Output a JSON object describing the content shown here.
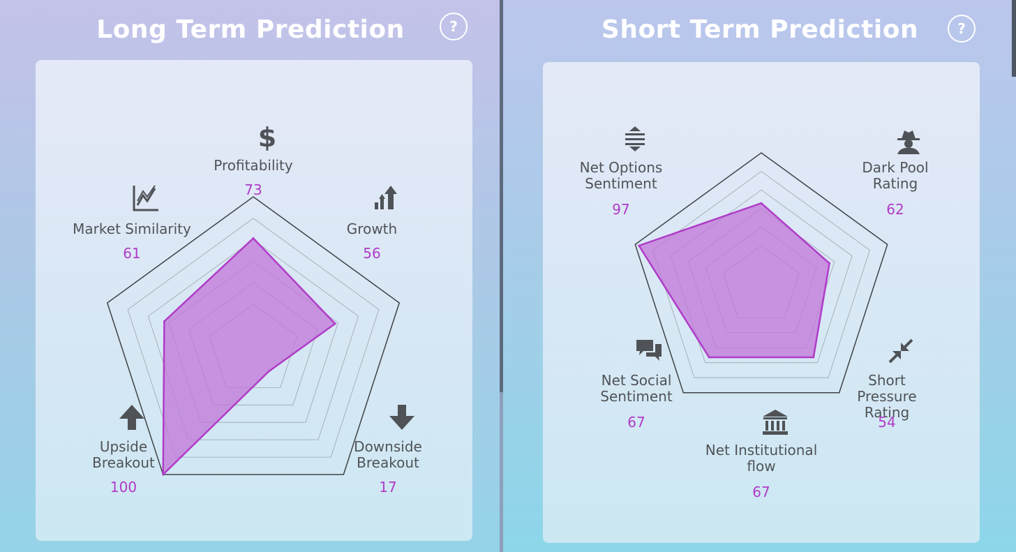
{
  "colors": {
    "accent": "#b03cc8",
    "fill": "#c276d8",
    "grid": "#7f8a8e",
    "outline": "#3e4346",
    "label": "#505357"
  },
  "help_label": "?",
  "chart_data": [
    {
      "type": "radar",
      "title": "Long Term Prediction",
      "range": [
        0,
        100
      ],
      "grid": true,
      "axes": [
        {
          "label": "Profitability",
          "value": 73,
          "icon": "dollar-icon",
          "value_text": "73"
        },
        {
          "label": "Growth",
          "value": 56,
          "icon": "growth-bars-icon",
          "value_text": "56"
        },
        {
          "label": "Downside\nBreakout",
          "value": 17,
          "icon": "arrow-down-icon",
          "value_text": "17"
        },
        {
          "label": "Upside\nBreakout",
          "value": 100,
          "icon": "arrow-up-icon",
          "value_text": "100"
        },
        {
          "label": "Market Similarity",
          "value": 61,
          "icon": "line-chart-icon",
          "value_text": "61"
        }
      ]
    },
    {
      "type": "radar",
      "title": "Short Term Prediction",
      "range": [
        0,
        100
      ],
      "grid": true,
      "axes": [
        {
          "label": "Dark Pool\nRating",
          "value": 62,
          "icon": "spy-icon",
          "value_text": "62"
        },
        {
          "label": "Short Pressure\nRating",
          "value": 54,
          "icon": "compress-arrows-icon",
          "value_text": "54"
        },
        {
          "label": "Net Institutional\nflow",
          "value": 67,
          "icon": "bank-icon",
          "value_text": "67"
        },
        {
          "label": "Net Social\nSentiment",
          "value": 67,
          "icon": "chat-bubbles-icon",
          "value_text": "67"
        },
        {
          "label": "Net Options\nSentiment",
          "value": 97,
          "icon": "up-down-arrows-icon",
          "value_text": "97"
        }
      ]
    }
  ]
}
